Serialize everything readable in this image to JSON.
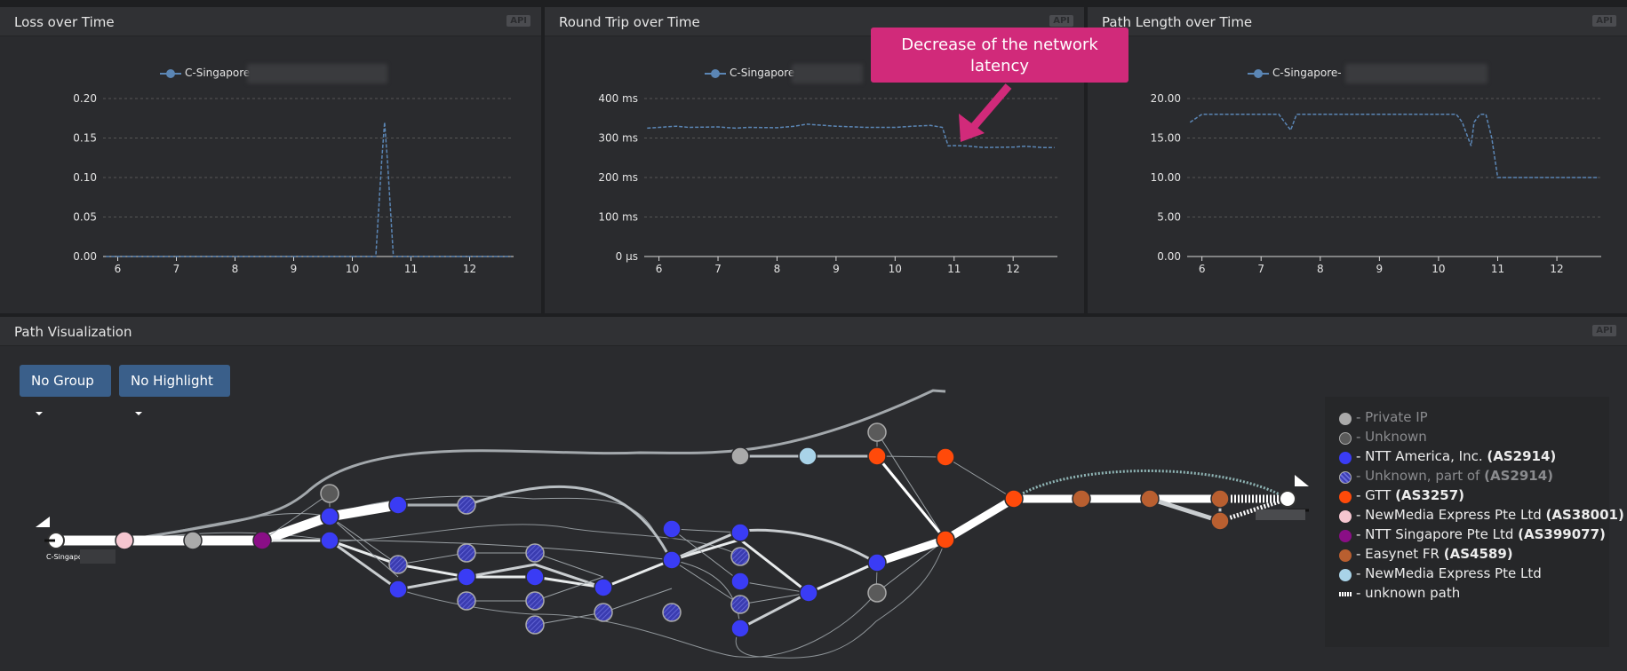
{
  "colors": {
    "accent": "#d12a7a",
    "series": "#5b86b5",
    "button": "#3a5f8a",
    "ntt_america": "#3a3cf5",
    "gtt": "#ff4a0a",
    "newmedia": "#f5c6d0",
    "ntt_singapore": "#8a0e86",
    "easynet": "#b95f30",
    "newmedia_light": "#a9d3e8",
    "private_ip": "#aaaaaa",
    "unknown": "#6a6a6a"
  },
  "panels": {
    "loss": {
      "title": "Loss over Time",
      "api": "API",
      "legend": "C-Singapore"
    },
    "rtt": {
      "title": "Round Trip over Time",
      "api": "API",
      "legend": "C-Singapore"
    },
    "path": {
      "title": "Path Length over Time",
      "api": "API",
      "legend": "C-Singapore-"
    },
    "viz": {
      "title": "Path Visualization",
      "api": "API"
    }
  },
  "callout": {
    "text": "Decrease of the network latency"
  },
  "chart_data": [
    {
      "type": "line",
      "title": "Loss over Time",
      "series": [
        {
          "name": "C-Singapore",
          "x": [
            5.8,
            6,
            6.5,
            7,
            7.5,
            8,
            8.5,
            9,
            9.5,
            10,
            10.3,
            10.4,
            10.5,
            10.55,
            10.6,
            10.7,
            11,
            11.5,
            12,
            12.5,
            12.7
          ],
          "values": [
            0,
            0,
            0,
            0,
            0,
            0,
            0,
            0,
            0,
            0,
            0,
            0,
            0.12,
            0.17,
            0.12,
            0,
            0,
            0,
            0,
            0,
            0
          ]
        }
      ],
      "x_ticks": [
        "6",
        "7",
        "8",
        "9",
        "10",
        "11",
        "12"
      ],
      "y_ticks": [
        "0.00",
        "0.05",
        "0.10",
        "0.15",
        "0.20"
      ],
      "xlim": [
        5.75,
        12.75
      ],
      "ylim": [
        0,
        0.2
      ],
      "grid": true
    },
    {
      "type": "line",
      "title": "Round Trip over Time",
      "series": [
        {
          "name": "C-Singapore",
          "x": [
            5.8,
            6,
            6.3,
            6.5,
            7,
            7.3,
            7.5,
            8,
            8.3,
            8.5,
            9,
            9.5,
            10,
            10.3,
            10.6,
            10.8,
            10.9,
            11,
            11.2,
            11.5,
            12,
            12.2,
            12.5,
            12.7
          ],
          "values": [
            325,
            327,
            330,
            327,
            328,
            325,
            327,
            326,
            330,
            335,
            330,
            327,
            327,
            330,
            332,
            327,
            280,
            281,
            280,
            276,
            277,
            279,
            276,
            276
          ]
        }
      ],
      "x_ticks": [
        "6",
        "7",
        "8",
        "9",
        "10",
        "11",
        "12"
      ],
      "y_ticks": [
        "0 μs",
        "100 ms",
        "200 ms",
        "300 ms",
        "400 ms"
      ],
      "xlim": [
        5.75,
        12.75
      ],
      "ylim": [
        0,
        400
      ],
      "grid": true
    },
    {
      "type": "line",
      "title": "Path Length over Time",
      "series": [
        {
          "name": "C-Singapore-",
          "x": [
            5.8,
            6,
            6.5,
            7,
            7.3,
            7.4,
            7.5,
            7.6,
            8,
            8.5,
            9,
            9.5,
            10,
            10.3,
            10.4,
            10.5,
            10.55,
            10.6,
            10.7,
            10.8,
            10.9,
            11,
            11.5,
            12,
            12.5,
            12.7
          ],
          "values": [
            17,
            18,
            18,
            18,
            18,
            17,
            16,
            18,
            18,
            18,
            18,
            18,
            18,
            18,
            17,
            15,
            14,
            17,
            18,
            18,
            15,
            10,
            10,
            10,
            10,
            10
          ]
        }
      ],
      "x_ticks": [
        "6",
        "7",
        "8",
        "9",
        "10",
        "11",
        "12"
      ],
      "y_ticks": [
        "0.00",
        "5.00",
        "10.00",
        "15.00",
        "20.00"
      ],
      "xlim": [
        5.75,
        12.75
      ],
      "ylim": [
        0,
        20
      ],
      "grid": true
    }
  ],
  "controls": {
    "group_label": "No Group",
    "highlight_label": "No Highlight"
  },
  "path_viz": {
    "source_label": "C-Singapore-"
  },
  "legend": [
    {
      "key": "private",
      "label": "- Private IP",
      "bold": "",
      "color": "#aaaaaa",
      "dim": true,
      "hatched": false
    },
    {
      "key": "unknown",
      "label": "- Unknown",
      "bold": "",
      "color": "#5a5a5a",
      "dim": true,
      "hatched": false
    },
    {
      "key": "ntt-america",
      "label": "- NTT America, Inc. ",
      "bold": "(AS2914)",
      "color": "#3a3cf5",
      "dim": false,
      "hatched": false
    },
    {
      "key": "unknown-part",
      "label": "- Unknown, part of ",
      "bold": "(AS2914)",
      "color": "#3a3cb0",
      "dim": true,
      "hatched": true
    },
    {
      "key": "gtt",
      "label": "- GTT ",
      "bold": "(AS3257)",
      "color": "#ff4a0a",
      "dim": false,
      "hatched": false
    },
    {
      "key": "newmedia",
      "label": "- NewMedia Express Pte Ltd ",
      "bold": "(AS38001)",
      "color": "#f5c6d0",
      "dim": false,
      "hatched": false
    },
    {
      "key": "ntt-singapore",
      "label": "- NTT Singapore Pte Ltd ",
      "bold": "(AS399077)",
      "color": "#8a0e86",
      "dim": false,
      "hatched": false
    },
    {
      "key": "easynet",
      "label": "- Easynet FR ",
      "bold": "(AS4589)",
      "color": "#b95f30",
      "dim": false,
      "hatched": false
    },
    {
      "key": "newmedia-light",
      "label": "- NewMedia Express Pte Ltd",
      "bold": "",
      "color": "#a9d3e8",
      "dim": false,
      "hatched": false
    },
    {
      "key": "unknown-path",
      "label": "- unknown path",
      "bold": "",
      "color": "",
      "dim": false,
      "hatched": false
    }
  ]
}
